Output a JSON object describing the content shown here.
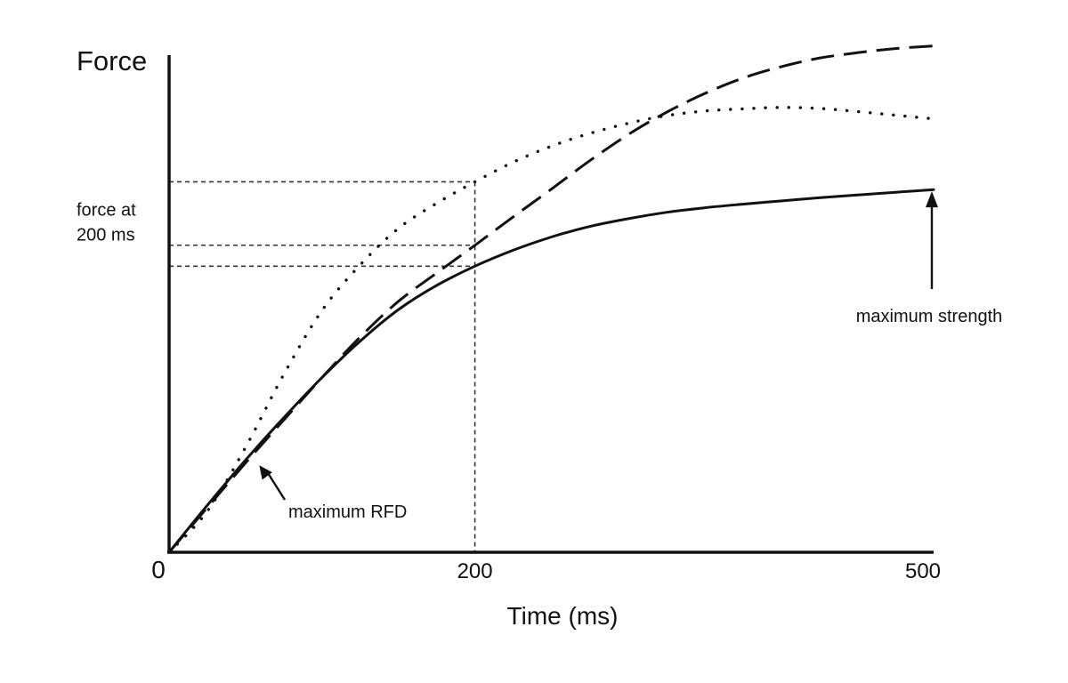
{
  "chart_data": {
    "type": "line",
    "title": "",
    "xlabel": "Time (ms)",
    "ylabel": "Force",
    "xlim": [
      0,
      500
    ],
    "origin_label": "0",
    "x_ticks": [
      200,
      500
    ],
    "grid": false,
    "legend": "none",
    "series": [
      {
        "line_style": "solid",
        "x": [
          0,
          25,
          50,
          75,
          100,
          125,
          150,
          175,
          200,
          225,
          250,
          275,
          300,
          325,
          350,
          375,
          400,
          425,
          450,
          475,
          500
        ],
        "y": [
          0,
          0.103,
          0.202,
          0.295,
          0.383,
          0.463,
          0.532,
          0.585,
          0.627,
          0.662,
          0.691,
          0.714,
          0.731,
          0.745,
          0.755,
          0.763,
          0.77,
          0.777,
          0.783,
          0.789,
          0.795
        ]
      },
      {
        "line_style": "dashed",
        "x": [
          0,
          25,
          50,
          75,
          100,
          125,
          150,
          175,
          200,
          225,
          250,
          275,
          300,
          325,
          350,
          375,
          400,
          425,
          450,
          475,
          500
        ],
        "y": [
          0,
          0.098,
          0.196,
          0.29,
          0.383,
          0.472,
          0.55,
          0.612,
          0.673,
          0.735,
          0.796,
          0.858,
          0.915,
          0.964,
          1.005,
          1.039,
          1.064,
          1.083,
          1.095,
          1.104,
          1.11
        ]
      },
      {
        "line_style": "dotted",
        "x": [
          0,
          25,
          50,
          75,
          100,
          125,
          150,
          175,
          200,
          225,
          250,
          275,
          300,
          325,
          350,
          375,
          400,
          425,
          450,
          475,
          500
        ],
        "y": [
          0,
          0.09,
          0.23,
          0.39,
          0.53,
          0.63,
          0.71,
          0.765,
          0.812,
          0.855,
          0.89,
          0.918,
          0.94,
          0.957,
          0.967,
          0.972,
          0.975,
          0.973,
          0.966,
          0.958,
          0.95
        ]
      }
    ],
    "guides": {
      "x": 200,
      "y_levels": [
        0.812,
        0.673,
        0.627
      ]
    },
    "annotations": [
      {
        "text": "force at 200 ms",
        "lines": [
          "force at",
          "200 ms"
        ],
        "x": 0,
        "y": 0.73
      },
      {
        "text": "maximum RFD",
        "points_to": {
          "x": 52,
          "y": 0.21
        },
        "x": 110,
        "y": 0.102
      },
      {
        "text": "maximum strength",
        "points_to": {
          "x": 500,
          "y": 0.795
        },
        "x": 500,
        "y": 0.485
      }
    ]
  }
}
